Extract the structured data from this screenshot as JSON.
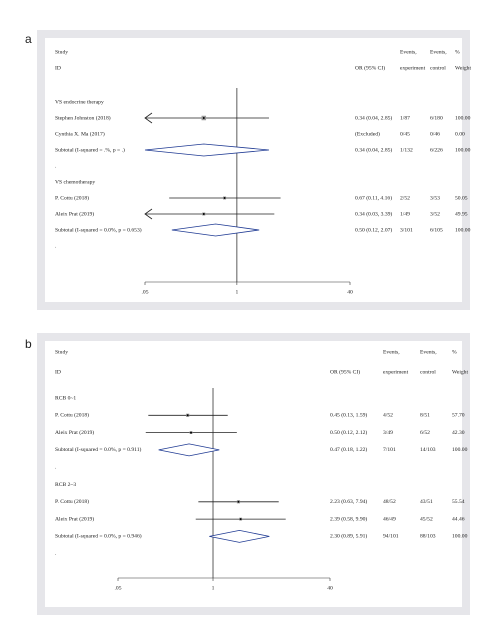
{
  "chart_data": [
    {
      "type": "forest",
      "panel_label": "a",
      "log": true,
      "xlim": [
        0.05,
        40
      ],
      "xticks": [
        {
          "value": 0.05,
          "label": ".05"
        },
        1,
        40
      ],
      "header": {
        "study": "Study",
        "id": "ID",
        "or": "OR (95% CI)",
        "exp_1": "Events,",
        "exp_2": "experiment",
        "ctl_1": "Events,",
        "ctl_2": "control",
        "w_1": "%",
        "w_2": "Weight"
      },
      "groups": [
        {
          "name": "VS endocrine therapy",
          "studies": [
            {
              "label": "Stephen Johnston (2018)",
              "or": 0.34,
              "lower": 0.04,
              "upper": 2.85,
              "ci_label": "0.34 (0.04, 2.85)",
              "events_exp": "1/87",
              "events_ctl": "6/180",
              "weight": "100.00"
            },
            {
              "label": "Cynthia X. Ma (2017)",
              "ci_label": "(Excluded)",
              "events_exp": "0/45",
              "events_ctl": "0/46",
              "weight": "0.00"
            }
          ],
          "subtotal": {
            "label": "Subtotal  (I-squared = .%, p = .)",
            "or": 0.34,
            "lower": 0.04,
            "upper": 2.85,
            "ci_label": "0.34 (0.04, 2.85)",
            "events_exp": "1/132",
            "events_ctl": "6/226",
            "weight": "100.00"
          },
          "footer": "."
        },
        {
          "name": "VS chemotherapy",
          "studies": [
            {
              "label": "P. Cottu (2018)",
              "or": 0.67,
              "lower": 0.11,
              "upper": 4.16,
              "ci_label": "0.67 (0.11, 4.16)",
              "events_exp": "2/52",
              "events_ctl": "3/53",
              "weight": "50.05"
            },
            {
              "label": "Aleix Prat (2019)",
              "or": 0.34,
              "lower": 0.03,
              "upper": 3.39,
              "ci_label": "0.34 (0.03, 3.39)",
              "events_exp": "1/49",
              "events_ctl": "3/52",
              "weight": "49.95"
            }
          ],
          "subtotal": {
            "label": "Subtotal  (I-squared = 0.0%, p = 0.653)",
            "or": 0.5,
            "lower": 0.12,
            "upper": 2.07,
            "ci_label": "0.50 (0.12, 2.07)",
            "events_exp": "3/101",
            "events_ctl": "6/105",
            "weight": "100.00"
          },
          "footer": "."
        }
      ]
    },
    {
      "type": "forest",
      "panel_label": "b",
      "log": true,
      "xlim": [
        0.05,
        40
      ],
      "xticks": [
        {
          "value": 0.05,
          "label": ".05"
        },
        1,
        40
      ],
      "header": {
        "study": "Study",
        "id": "ID",
        "or": "OR (95% CI)",
        "exp_1": "Events,",
        "exp_2": "experiment",
        "ctl_1": "Events,",
        "ctl_2": "control",
        "w_1": "%",
        "w_2": "Weight"
      },
      "groups": [
        {
          "name": "RCB 0~1",
          "studies": [
            {
              "label": "P. Cottu (2018)",
              "or": 0.45,
              "lower": 0.13,
              "upper": 1.59,
              "ci_label": "0.45 (0.13, 1.59)",
              "events_exp": "4/52",
              "events_ctl": "8/51",
              "weight": "57.70"
            },
            {
              "label": "Aleix Prat (2019)",
              "or": 0.5,
              "lower": 0.12,
              "upper": 2.12,
              "ci_label": "0.50 (0.12, 2.12)",
              "events_exp": "3/49",
              "events_ctl": "6/52",
              "weight": "42.30"
            }
          ],
          "subtotal": {
            "label": "Subtotal  (I-squared = 0.0%, p = 0.911)",
            "or": 0.47,
            "lower": 0.18,
            "upper": 1.22,
            "ci_label": "0.47 (0.18, 1.22)",
            "events_exp": "7/101",
            "events_ctl": "14/103",
            "weight": "100.00"
          },
          "footer": "."
        },
        {
          "name": "RCB 2~3",
          "studies": [
            {
              "label": "P. Cottu (2018)",
              "or": 2.23,
              "lower": 0.63,
              "upper": 7.94,
              "ci_label": "2.23 (0.63, 7.94)",
              "events_exp": "48/52",
              "events_ctl": "43/51",
              "weight": "55.54"
            },
            {
              "label": "Aleix Prat (2019)",
              "or": 2.39,
              "lower": 0.58,
              "upper": 9.9,
              "ci_label": "2.39 (0.58, 9.90)",
              "events_exp": "46/49",
              "events_ctl": "45/52",
              "weight": "44.46"
            }
          ],
          "subtotal": {
            "label": "Subtotal  (I-squared = 0.0%, p = 0.946)",
            "or": 2.3,
            "lower": 0.89,
            "upper": 5.91,
            "ci_label": "2.30 (0.89, 5.91)",
            "events_exp": "94/101",
            "events_ctl": "88/103",
            "weight": "100.00"
          },
          "footer": "."
        }
      ]
    }
  ]
}
